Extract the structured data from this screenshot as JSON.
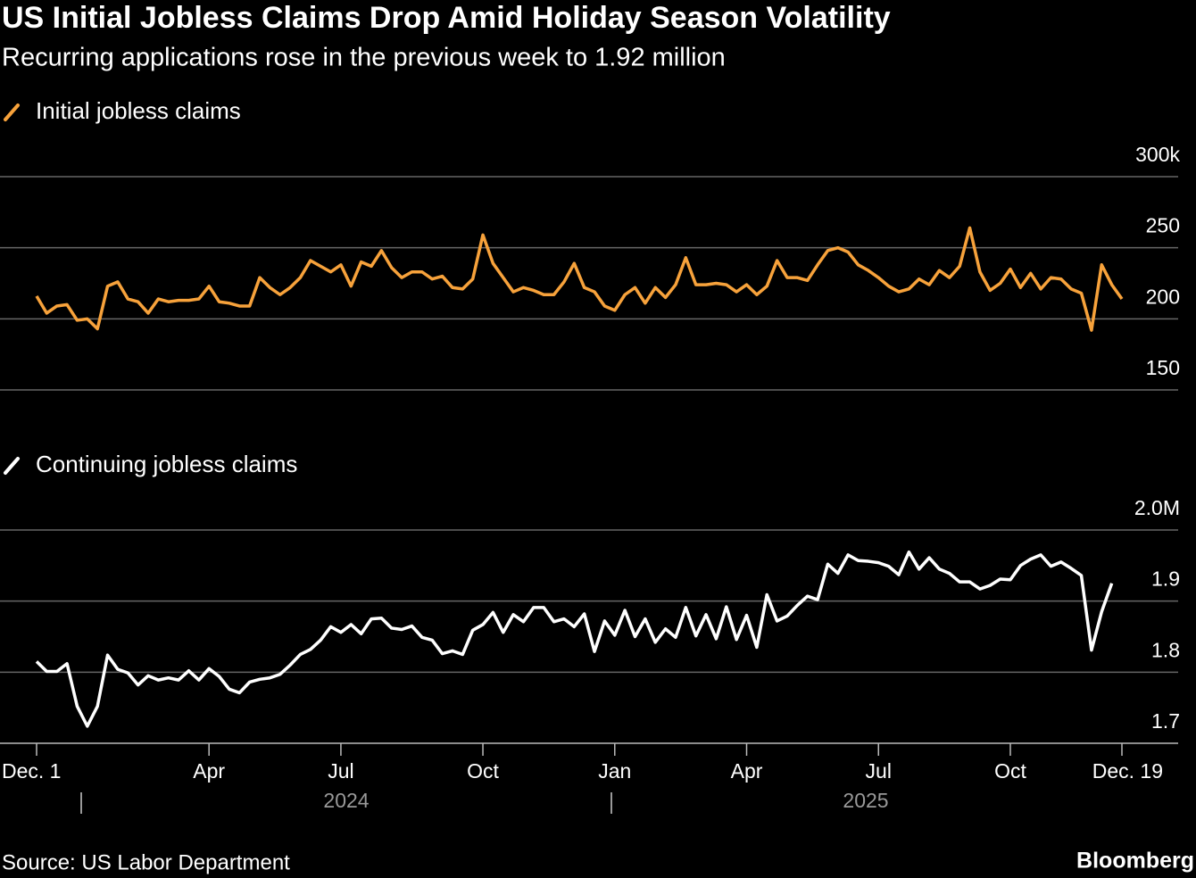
{
  "title": "US Initial Jobless Claims Drop Amid Holiday Season Volatility",
  "subtitle": "Recurring applications rose in the previous week to 1.92 million",
  "source": "Source: US Labor Department",
  "credit": "Bloomberg",
  "chart_data": [
    {
      "type": "line",
      "series": [
        {
          "name": "Initial jobless claims",
          "color": "#f7a23b",
          "values": [
            216,
            204,
            209,
            210,
            199,
            200,
            193,
            223,
            226,
            214,
            212,
            204,
            214,
            212,
            213,
            213,
            214,
            223,
            212,
            211,
            209,
            209,
            229,
            222,
            217,
            222,
            229,
            241,
            237,
            233,
            238,
            223,
            240,
            237,
            248,
            236,
            229,
            233,
            233,
            228,
            230,
            222,
            221,
            228,
            259,
            239,
            229,
            219,
            222,
            220,
            217,
            217,
            226,
            239,
            222,
            219,
            209,
            206,
            217,
            222,
            211,
            222,
            215,
            224,
            243,
            224,
            224,
            225,
            224,
            219,
            224,
            217,
            223,
            241,
            229,
            229,
            227,
            238,
            248,
            250,
            247,
            238,
            234,
            229,
            223,
            219,
            221,
            228,
            224,
            234,
            229,
            237,
            264,
            233,
            220,
            225,
            235,
            222,
            232,
            221,
            229,
            228,
            221,
            218,
            192,
            238,
            224,
            214
          ]
        }
      ],
      "ylim": [
        150,
        300
      ],
      "yticks": [
        150,
        200,
        250,
        {
          "value": 300,
          "label": "300k"
        }
      ],
      "grid": true
    },
    {
      "type": "line",
      "categories": [
        "Dec. 1",
        null,
        null,
        null,
        null,
        null,
        null,
        null,
        null,
        null,
        null,
        null,
        null,
        null,
        null,
        null,
        null,
        "Apr",
        null,
        null,
        null,
        null,
        null,
        null,
        null,
        null,
        null,
        null,
        null,
        null,
        "Jul",
        null,
        null,
        null,
        null,
        null,
        null,
        null,
        null,
        null,
        null,
        null,
        null,
        null,
        "Oct",
        null,
        null,
        null,
        null,
        null,
        null,
        null,
        null,
        null,
        null,
        null,
        null,
        "Jan",
        null,
        null,
        null,
        null,
        null,
        null,
        null,
        null,
        null,
        null,
        null,
        null,
        "Apr",
        null,
        null,
        null,
        null,
        null,
        null,
        null,
        null,
        null,
        null,
        null,
        null,
        "Jul",
        null,
        null,
        null,
        null,
        null,
        null,
        null,
        null,
        null,
        null,
        null,
        null,
        "Oct",
        null,
        null,
        null,
        null,
        null,
        null,
        null,
        null,
        null,
        null,
        "Dec. 19"
      ],
      "x_groups": [
        "2024",
        "2025"
      ],
      "series": [
        {
          "name": "Continuing jobless claims",
          "color": "#ffffff",
          "values": [
            1.815,
            1.801,
            1.801,
            1.812,
            1.752,
            1.724,
            1.752,
            1.824,
            1.804,
            1.799,
            1.782,
            1.795,
            1.789,
            1.792,
            1.789,
            1.802,
            1.789,
            1.805,
            1.794,
            1.776,
            1.771,
            1.786,
            1.79,
            1.792,
            1.797,
            1.81,
            1.825,
            1.832,
            1.845,
            1.864,
            1.856,
            1.867,
            1.854,
            1.875,
            1.876,
            1.862,
            1.86,
            1.865,
            1.849,
            1.845,
            1.826,
            1.83,
            1.825,
            1.859,
            1.867,
            1.884,
            1.856,
            1.881,
            1.871,
            1.891,
            1.891,
            1.871,
            1.875,
            1.864,
            1.882,
            1.829,
            1.872,
            1.852,
            1.887,
            1.85,
            1.875,
            1.842,
            1.861,
            1.849,
            1.891,
            1.851,
            1.881,
            1.847,
            1.892,
            1.846,
            1.88,
            1.835,
            1.909,
            1.872,
            1.879,
            1.894,
            1.907,
            1.902,
            1.952,
            1.939,
            1.965,
            1.957,
            1.956,
            1.954,
            1.949,
            1.937,
            1.969,
            1.945,
            1.961,
            1.945,
            1.939,
            1.927,
            1.927,
            1.917,
            1.922,
            1.931,
            1.93,
            1.95,
            1.959,
            1.965,
            1.949,
            1.955,
            1.946,
            1.936,
            1.831,
            1.885,
            1.925,
            null
          ]
        }
      ],
      "ylim": [
        1.7,
        2.0
      ],
      "yticks": [
        1.7,
        1.8,
        1.9,
        {
          "value": 2.0,
          "label": "2.0M"
        }
      ],
      "grid": true
    }
  ]
}
